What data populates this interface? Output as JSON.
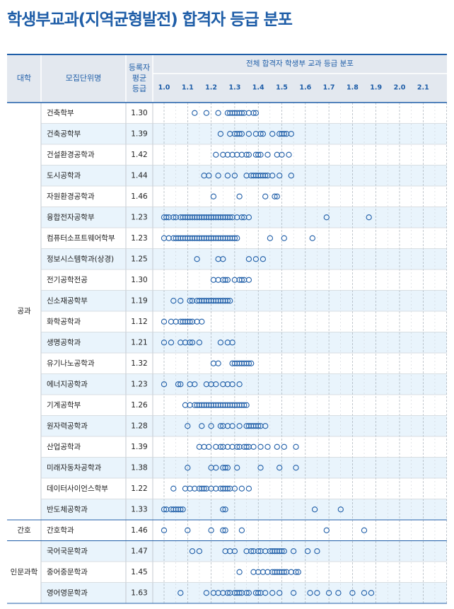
{
  "title": "학생부교과(지역균형발전) 합격자 등급 분포",
  "colors": {
    "title": "#1f5ea8",
    "header_bg": "#e3e8ef",
    "stripe": "#e9f4fc",
    "dot": "#1f5ea8",
    "rule": "#1f5ea8"
  },
  "headers": {
    "college": "대학",
    "department": "모집단위명",
    "average": [
      "등록자",
      "평균",
      "등급"
    ],
    "distribution": "전체 합격자 학생부 교과 등급 분포"
  },
  "chart_data": {
    "type": "scatter",
    "title": "전체 합격자 학생부 교과 등급 분포",
    "x_ticks": [
      "1.0",
      "1.1",
      "1.2",
      "1.3",
      "1.4",
      "1.5",
      "1.6",
      "1.7",
      "1.8",
      "1.9",
      "2.0",
      "2.1"
    ],
    "xlim": [
      0.97,
      2.2
    ],
    "grid": true,
    "groups": [
      {
        "college": "공과",
        "rows": [
          {
            "dept": "건축학부",
            "avg": "1.30",
            "points": [
              1.13,
              1.18,
              1.23,
              1.27,
              1.28,
              1.29,
              1.3,
              1.31,
              1.32,
              1.33,
              1.34,
              1.36,
              1.38,
              1.39
            ]
          },
          {
            "dept": "건축공학부",
            "avg": "1.39",
            "points": [
              1.24,
              1.28,
              1.3,
              1.31,
              1.32,
              1.33,
              1.36,
              1.39,
              1.41,
              1.42,
              1.46,
              1.49,
              1.5,
              1.51,
              1.52,
              1.54
            ]
          },
          {
            "dept": "건설환경공학과",
            "avg": "1.42",
            "points": [
              1.22,
              1.25,
              1.27,
              1.29,
              1.31,
              1.33,
              1.35,
              1.36,
              1.39,
              1.4,
              1.41,
              1.44,
              1.48,
              1.5,
              1.53
            ]
          },
          {
            "dept": "도시공학과",
            "avg": "1.44",
            "points": [
              1.17,
              1.19,
              1.23,
              1.27,
              1.3,
              1.35,
              1.37,
              1.38,
              1.39,
              1.4,
              1.41,
              1.42,
              1.43,
              1.44,
              1.46,
              1.49,
              1.54
            ]
          },
          {
            "dept": "자원환경공학과",
            "avg": "1.46",
            "points": [
              1.21,
              1.32,
              1.43,
              1.47,
              1.48
            ]
          },
          {
            "dept": "융합전자공학부",
            "avg": "1.23",
            "points": [
              1.0,
              1.01,
              1.02,
              1.04,
              1.05,
              1.07,
              1.08,
              1.09,
              1.1,
              1.11,
              1.12,
              1.13,
              1.14,
              1.15,
              1.16,
              1.17,
              1.18,
              1.19,
              1.2,
              1.21,
              1.22,
              1.23,
              1.24,
              1.25,
              1.26,
              1.27,
              1.28,
              1.29,
              1.31,
              1.33,
              1.34,
              1.36,
              1.69,
              1.87
            ]
          },
          {
            "dept": "컴퓨터소프트웨어학부",
            "avg": "1.23",
            "points": [
              1.0,
              1.02,
              1.04,
              1.05,
              1.06,
              1.07,
              1.08,
              1.09,
              1.1,
              1.11,
              1.12,
              1.13,
              1.14,
              1.15,
              1.16,
              1.17,
              1.18,
              1.19,
              1.2,
              1.21,
              1.22,
              1.23,
              1.24,
              1.25,
              1.26,
              1.27,
              1.28,
              1.29,
              1.3,
              1.31,
              1.45,
              1.51,
              1.63
            ]
          },
          {
            "dept": "정보시스템학과(상경)",
            "avg": "1.25",
            "points": [
              1.14,
              1.23,
              1.25,
              1.36,
              1.39,
              1.42
            ]
          },
          {
            "dept": "전기공학전공",
            "avg": "1.30",
            "points": [
              1.21,
              1.23,
              1.25,
              1.26,
              1.27,
              1.3,
              1.32,
              1.33,
              1.34,
              1.36
            ]
          },
          {
            "dept": "신소재공학부",
            "avg": "1.19",
            "points": [
              1.04,
              1.07,
              1.11,
              1.12,
              1.14,
              1.15,
              1.16,
              1.17,
              1.18,
              1.19,
              1.2,
              1.21,
              1.22,
              1.23,
              1.24,
              1.25,
              1.26,
              1.27,
              1.28
            ]
          },
          {
            "dept": "화학공학과",
            "avg": "1.12",
            "points": [
              1.0,
              1.03,
              1.05,
              1.07,
              1.08,
              1.09,
              1.1,
              1.11,
              1.12,
              1.14,
              1.16
            ]
          },
          {
            "dept": "생명공학과",
            "avg": "1.21",
            "points": [
              1.0,
              1.03,
              1.07,
              1.09,
              1.11,
              1.12,
              1.15,
              1.24,
              1.27,
              1.29
            ]
          },
          {
            "dept": "유기나노공학과",
            "avg": "1.32",
            "points": [
              1.21,
              1.23,
              1.29,
              1.3,
              1.31,
              1.32,
              1.33,
              1.34,
              1.35,
              1.36,
              1.37
            ]
          },
          {
            "dept": "에너지공학과",
            "avg": "1.23",
            "points": [
              1.0,
              1.06,
              1.07,
              1.11,
              1.13,
              1.18,
              1.2,
              1.22,
              1.25,
              1.27,
              1.29,
              1.32
            ]
          },
          {
            "dept": "기계공학부",
            "avg": "1.26",
            "points": [
              1.09,
              1.11,
              1.13,
              1.14,
              1.15,
              1.16,
              1.17,
              1.18,
              1.19,
              1.2,
              1.21,
              1.22,
              1.23,
              1.24,
              1.25,
              1.26,
              1.27,
              1.28,
              1.29,
              1.3,
              1.31,
              1.32,
              1.33,
              1.34,
              1.35
            ]
          },
          {
            "dept": "원자력공학과",
            "avg": "1.28",
            "points": [
              1.1,
              1.16,
              1.2,
              1.24,
              1.25,
              1.27,
              1.29,
              1.32,
              1.35,
              1.36,
              1.37,
              1.38,
              1.39,
              1.4,
              1.41,
              1.43
            ]
          },
          {
            "dept": "산업공학과",
            "avg": "1.39",
            "points": [
              1.15,
              1.17,
              1.19,
              1.22,
              1.24,
              1.25,
              1.27,
              1.29,
              1.31,
              1.32,
              1.34,
              1.35,
              1.36,
              1.38,
              1.41,
              1.44,
              1.48,
              1.51,
              1.56
            ]
          },
          {
            "dept": "미래자동차공학과",
            "avg": "1.38",
            "points": [
              1.1,
              1.2,
              1.22,
              1.25,
              1.26,
              1.27,
              1.31,
              1.41,
              1.49,
              1.56
            ]
          },
          {
            "dept": "데이터사이언스학부",
            "avg": "1.22",
            "points": [
              1.04,
              1.09,
              1.11,
              1.13,
              1.15,
              1.16,
              1.17,
              1.18,
              1.2,
              1.22,
              1.24,
              1.25,
              1.26,
              1.27,
              1.28,
              1.3,
              1.33,
              1.36
            ]
          },
          {
            "dept": "반도체공학과",
            "avg": "1.33",
            "points": [
              1.0,
              1.01,
              1.03,
              1.04,
              1.05,
              1.06,
              1.07,
              1.08,
              1.25,
              1.26,
              1.64,
              1.75
            ]
          }
        ]
      },
      {
        "college": "간호",
        "rows": [
          {
            "dept": "간호학과",
            "avg": "1.46",
            "points": [
              1.0,
              1.1,
              1.2,
              1.25,
              1.26,
              1.33,
              1.69,
              1.85
            ]
          }
        ]
      },
      {
        "college": "인문과학",
        "rows": [
          {
            "dept": "국어국문학과",
            "avg": "1.47",
            "points": [
              1.12,
              1.15,
              1.26,
              1.28,
              1.3,
              1.35,
              1.37,
              1.38,
              1.4,
              1.41,
              1.43,
              1.45,
              1.46,
              1.47,
              1.48,
              1.49,
              1.5,
              1.51,
              1.55,
              1.61,
              1.65
            ]
          },
          {
            "dept": "중어중문학과",
            "avg": "1.45",
            "points": [
              1.32,
              1.38,
              1.4,
              1.42,
              1.44,
              1.46,
              1.47,
              1.48,
              1.49,
              1.5,
              1.51,
              1.52,
              1.54,
              1.56,
              1.57
            ]
          },
          {
            "dept": "영어영문학과",
            "avg": "1.63",
            "points": [
              1.07,
              1.18,
              1.21,
              1.23,
              1.25,
              1.27,
              1.28,
              1.3,
              1.31,
              1.32,
              1.33,
              1.35,
              1.36,
              1.39,
              1.4,
              1.41,
              1.43,
              1.46,
              1.49,
              1.55,
              1.62,
              1.65,
              1.7,
              1.74,
              1.8,
              1.85,
              1.88
            ]
          }
        ]
      }
    ]
  }
}
